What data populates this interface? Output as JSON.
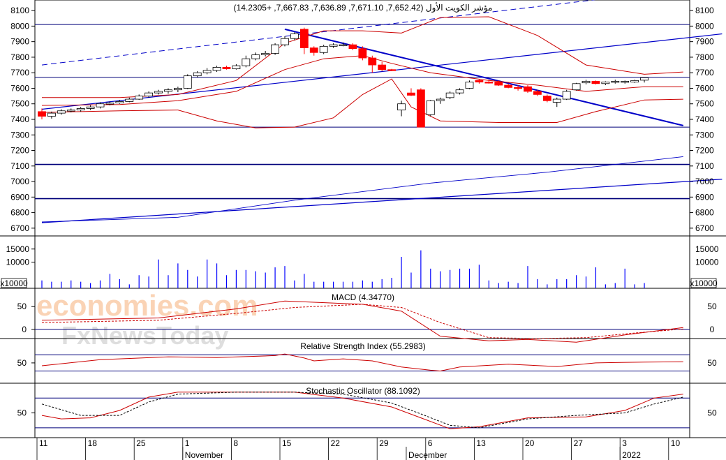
{
  "chart_data": {
    "type": "candlestick",
    "title": "مؤشر الكويت الأول (7,652.42, 7,671.10, 7,636.89, 7,667.83, +14.2305)",
    "colors": {
      "up": "#0000ff",
      "down": "#ff0000",
      "band": "#cc0000",
      "trend": "#0000c8",
      "grid": "#00007a"
    },
    "price_axis": {
      "min": 6650,
      "max": 8150,
      "ticks": [
        6700,
        6800,
        6900,
        7000,
        7100,
        7200,
        7300,
        7400,
        7500,
        7600,
        7700,
        7800,
        7900,
        8000,
        8100
      ]
    },
    "horizontal_levels": [
      8010,
      7670,
      7350,
      7110,
      6890
    ],
    "candles": [
      {
        "o": 7450,
        "h": 7470,
        "l": 7400,
        "c": 7420
      },
      {
        "o": 7420,
        "h": 7450,
        "l": 7405,
        "c": 7440
      },
      {
        "o": 7440,
        "h": 7465,
        "l": 7430,
        "c": 7455
      },
      {
        "o": 7455,
        "h": 7470,
        "l": 7445,
        "c": 7460
      },
      {
        "o": 7460,
        "h": 7480,
        "l": 7450,
        "c": 7470
      },
      {
        "o": 7470,
        "h": 7490,
        "l": 7460,
        "c": 7480
      },
      {
        "o": 7480,
        "h": 7510,
        "l": 7470,
        "c": 7500
      },
      {
        "o": 7500,
        "h": 7515,
        "l": 7490,
        "c": 7505
      },
      {
        "o": 7505,
        "h": 7525,
        "l": 7500,
        "c": 7515
      },
      {
        "o": 7515,
        "h": 7540,
        "l": 7510,
        "c": 7530
      },
      {
        "o": 7530,
        "h": 7560,
        "l": 7525,
        "c": 7550
      },
      {
        "o": 7550,
        "h": 7580,
        "l": 7540,
        "c": 7570
      },
      {
        "o": 7570,
        "h": 7590,
        "l": 7560,
        "c": 7580
      },
      {
        "o": 7580,
        "h": 7600,
        "l": 7565,
        "c": 7590
      },
      {
        "o": 7590,
        "h": 7610,
        "l": 7575,
        "c": 7600
      },
      {
        "o": 7600,
        "h": 7690,
        "l": 7595,
        "c": 7680
      },
      {
        "o": 7680,
        "h": 7710,
        "l": 7670,
        "c": 7700
      },
      {
        "o": 7700,
        "h": 7730,
        "l": 7690,
        "c": 7715
      },
      {
        "o": 7715,
        "h": 7745,
        "l": 7705,
        "c": 7735
      },
      {
        "o": 7735,
        "h": 7745,
        "l": 7720,
        "c": 7725
      },
      {
        "o": 7725,
        "h": 7755,
        "l": 7720,
        "c": 7745
      },
      {
        "o": 7745,
        "h": 7810,
        "l": 7735,
        "c": 7790
      },
      {
        "o": 7790,
        "h": 7830,
        "l": 7780,
        "c": 7815
      },
      {
        "o": 7815,
        "h": 7840,
        "l": 7805,
        "c": 7825
      },
      {
        "o": 7825,
        "h": 7890,
        "l": 7815,
        "c": 7880
      },
      {
        "o": 7880,
        "h": 7935,
        "l": 7870,
        "c": 7920
      },
      {
        "o": 7920,
        "h": 7960,
        "l": 7910,
        "c": 7950
      },
      {
        "o": 7980,
        "h": 7990,
        "l": 7820,
        "c": 7860
      },
      {
        "o": 7860,
        "h": 7870,
        "l": 7810,
        "c": 7830
      },
      {
        "o": 7830,
        "h": 7880,
        "l": 7820,
        "c": 7870
      },
      {
        "o": 7870,
        "h": 7890,
        "l": 7860,
        "c": 7880
      },
      {
        "o": 7880,
        "h": 7895,
        "l": 7870,
        "c": 7880
      },
      {
        "o": 7880,
        "h": 7890,
        "l": 7845,
        "c": 7855
      },
      {
        "o": 7855,
        "h": 7870,
        "l": 7780,
        "c": 7795
      },
      {
        "o": 7795,
        "h": 7810,
        "l": 7700,
        "c": 7750
      },
      {
        "o": 7750,
        "h": 7770,
        "l": 7710,
        "c": 7720
      },
      {
        "o": 7720,
        "h": 7725,
        "l": 7710,
        "c": 7715
      },
      {
        "o": 7460,
        "h": 7520,
        "l": 7420,
        "c": 7500
      },
      {
        "o": 7570,
        "h": 7600,
        "l": 7550,
        "c": 7555
      },
      {
        "o": 7590,
        "h": 7600,
        "l": 7350,
        "c": 7350
      },
      {
        "o": 7430,
        "h": 7525,
        "l": 7420,
        "c": 7520
      },
      {
        "o": 7520,
        "h": 7540,
        "l": 7500,
        "c": 7530
      },
      {
        "o": 7540,
        "h": 7580,
        "l": 7530,
        "c": 7570
      },
      {
        "o": 7570,
        "h": 7600,
        "l": 7560,
        "c": 7590
      },
      {
        "o": 7600,
        "h": 7650,
        "l": 7595,
        "c": 7640
      },
      {
        "o": 7650,
        "h": 7660,
        "l": 7630,
        "c": 7640
      },
      {
        "o": 7640,
        "h": 7655,
        "l": 7630,
        "c": 7635
      },
      {
        "o": 7640,
        "h": 7650,
        "l": 7615,
        "c": 7620
      },
      {
        "o": 7620,
        "h": 7630,
        "l": 7600,
        "c": 7605
      },
      {
        "o": 7605,
        "h": 7620,
        "l": 7585,
        "c": 7600
      },
      {
        "o": 7610,
        "h": 7620,
        "l": 7570,
        "c": 7580
      },
      {
        "o": 7580,
        "h": 7590,
        "l": 7550,
        "c": 7560
      },
      {
        "o": 7550,
        "h": 7560,
        "l": 7510,
        "c": 7520
      },
      {
        "o": 7510,
        "h": 7540,
        "l": 7480,
        "c": 7530
      },
      {
        "o": 7530,
        "h": 7590,
        "l": 7525,
        "c": 7580
      },
      {
        "o": 7590,
        "h": 7635,
        "l": 7585,
        "c": 7630
      },
      {
        "o": 7635,
        "h": 7655,
        "l": 7625,
        "c": 7645
      },
      {
        "o": 7645,
        "h": 7650,
        "l": 7625,
        "c": 7630
      },
      {
        "o": 7630,
        "h": 7645,
        "l": 7620,
        "c": 7640
      },
      {
        "o": 7640,
        "h": 7655,
        "l": 7630,
        "c": 7645
      },
      {
        "o": 7640,
        "h": 7650,
        "l": 7630,
        "c": 7645
      },
      {
        "o": 7640,
        "h": 7655,
        "l": 7635,
        "c": 7650
      },
      {
        "o": 7652,
        "h": 7671,
        "l": 7637,
        "c": 7668
      }
    ],
    "bollinger": {
      "upper": [
        [
          0,
          7540
        ],
        [
          8,
          7540
        ],
        [
          14,
          7560
        ],
        [
          20,
          7650
        ],
        [
          25,
          7890
        ],
        [
          29,
          7970
        ],
        [
          33,
          7970
        ],
        [
          37,
          7955
        ],
        [
          41,
          8055
        ],
        [
          46,
          8060
        ],
        [
          51,
          7940
        ],
        [
          56,
          7750
        ],
        [
          62,
          7690
        ],
        [
          66,
          7705
        ]
      ],
      "middle": [
        [
          0,
          7490
        ],
        [
          8,
          7495
        ],
        [
          14,
          7520
        ],
        [
          20,
          7580
        ],
        [
          25,
          7720
        ],
        [
          29,
          7790
        ],
        [
          33,
          7810
        ],
        [
          36,
          7760
        ],
        [
          40,
          7700
        ],
        [
          46,
          7650
        ],
        [
          51,
          7620
        ],
        [
          56,
          7580
        ],
        [
          62,
          7610
        ],
        [
          66,
          7610
        ]
      ],
      "lower": [
        [
          0,
          7445
        ],
        [
          8,
          7455
        ],
        [
          14,
          7460
        ],
        [
          18,
          7390
        ],
        [
          22,
          7345
        ],
        [
          26,
          7350
        ],
        [
          30,
          7410
        ],
        [
          33,
          7560
        ],
        [
          36,
          7660
        ],
        [
          38,
          7480
        ],
        [
          41,
          7390
        ],
        [
          47,
          7380
        ],
        [
          53,
          7380
        ],
        [
          57,
          7450
        ],
        [
          62,
          7525
        ],
        [
          66,
          7530
        ]
      ]
    },
    "moving_average": [
      [
        0,
        6740
      ],
      [
        14,
        6770
      ],
      [
        26,
        6880
      ],
      [
        40,
        6990
      ],
      [
        52,
        7060
      ],
      [
        66,
        7160
      ]
    ],
    "trend_lines": [
      {
        "style": "dashed",
        "points": [
          [
            0,
            7750
          ],
          [
            57,
            8170
          ]
        ]
      },
      {
        "style": "solid",
        "points": [
          [
            0,
            7465
          ],
          [
            70,
            7950
          ]
        ]
      },
      {
        "style": "solid",
        "points": [
          [
            0,
            6735
          ],
          [
            70,
            7015
          ]
        ]
      },
      {
        "style": "solid",
        "points": [
          [
            25,
            7980
          ],
          [
            66,
            7360
          ]
        ]
      }
    ],
    "volume": {
      "multiplier_label": "x10000",
      "ticks": [
        10000,
        15000
      ],
      "max": 20000,
      "values": [
        3000,
        2500,
        2500,
        3000,
        2500,
        2000,
        3000,
        5500,
        3500,
        1500,
        5000,
        4500,
        11000,
        5000,
        9500,
        7000,
        4500,
        11000,
        9500,
        5000,
        7000,
        7000,
        6500,
        6000,
        8000,
        8500,
        3000,
        5500,
        2500,
        2500,
        2500,
        2500,
        2500,
        3000,
        2500,
        3500,
        4000,
        12000,
        6000,
        14500,
        7500,
        6500,
        7000,
        7500,
        7500,
        9000,
        3000,
        2000,
        2500,
        2000,
        8500,
        3500,
        1500,
        3500,
        3500,
        5000,
        4500,
        8000,
        1500,
        2000,
        7500,
        1500,
        2000
      ]
    },
    "panels": [
      {
        "name": "MACD",
        "title": "MACD (4.34770)",
        "ticks": [
          0,
          50
        ],
        "range": [
          -20,
          90
        ],
        "levels": [
          0
        ],
        "series": [
          {
            "style": "solid",
            "points": [
              [
                0,
                20
              ],
              [
                12,
                25
              ],
              [
                20,
                45
              ],
              [
                25,
                62
              ],
              [
                33,
                55
              ],
              [
                37,
                40
              ],
              [
                41,
                -15
              ],
              [
                46,
                -25
              ],
              [
                50,
                -22
              ],
              [
                55,
                -28
              ],
              [
                60,
                -12
              ],
              [
                66,
                4
              ]
            ]
          },
          {
            "style": "dashed",
            "points": [
              [
                0,
                15
              ],
              [
                12,
                20
              ],
              [
                20,
                35
              ],
              [
                26,
                48
              ],
              [
                33,
                55
              ],
              [
                37,
                48
              ],
              [
                41,
                15
              ],
              [
                46,
                -18
              ],
              [
                51,
                -20
              ],
              [
                56,
                -18
              ],
              [
                61,
                -8
              ],
              [
                66,
                1
              ]
            ]
          }
        ]
      },
      {
        "name": "Relative Strength Index",
        "title": "Relative Strength Index (55.2983)",
        "ticks": [
          50
        ],
        "range": [
          0,
          110
        ],
        "levels": [
          70,
          30
        ],
        "series": [
          {
            "style": "solid",
            "points": [
              [
                0,
                43
              ],
              [
                6,
                58
              ],
              [
                13,
                65
              ],
              [
                18,
                63
              ],
              [
                24,
                68
              ],
              [
                25,
                72
              ],
              [
                27,
                62
              ],
              [
                28,
                55
              ],
              [
                31,
                60
              ],
              [
                34,
                55
              ],
              [
                37,
                40
              ],
              [
                40,
                32
              ],
              [
                41,
                30
              ],
              [
                43,
                40
              ],
              [
                48,
                47
              ],
              [
                53,
                41
              ],
              [
                57,
                50
              ],
              [
                62,
                52
              ],
              [
                66,
                53
              ]
            ]
          }
        ]
      },
      {
        "name": "Stochastic Oscillator",
        "title": "Stochastic Oscillator (88.1092)",
        "ticks": [
          50
        ],
        "range": [
          0,
          110
        ],
        "levels": [
          80,
          20
        ],
        "series": [
          {
            "style": "solid",
            "points": [
              [
                0,
                45
              ],
              [
                2,
                38
              ],
              [
                5,
                40
              ],
              [
                8,
                55
              ],
              [
                11,
                82
              ],
              [
                14,
                92
              ],
              [
                20,
                92
              ],
              [
                26,
                92
              ],
              [
                31,
                80
              ],
              [
                36,
                62
              ],
              [
                39,
                40
              ],
              [
                42,
                18
              ],
              [
                45,
                22
              ],
              [
                50,
                40
              ],
              [
                56,
                42
              ],
              [
                60,
                55
              ],
              [
                63,
                80
              ],
              [
                66,
                88
              ]
            ]
          },
          {
            "style": "dashed",
            "points": [
              [
                0,
                68
              ],
              [
                4,
                45
              ],
              [
                8,
                45
              ],
              [
                11,
                72
              ],
              [
                14,
                88
              ],
              [
                20,
                92
              ],
              [
                26,
                92
              ],
              [
                31,
                88
              ],
              [
                36,
                70
              ],
              [
                39,
                48
              ],
              [
                42,
                25
              ],
              [
                45,
                20
              ],
              [
                50,
                38
              ],
              [
                55,
                45
              ],
              [
                60,
                50
              ],
              [
                63,
                68
              ],
              [
                66,
                82
              ]
            ]
          }
        ]
      }
    ],
    "x_axis": {
      "day_labels": [
        {
          "label": "11",
          "index": 0
        },
        {
          "label": "18",
          "index": 5
        },
        {
          "label": "25",
          "index": 10
        },
        {
          "label": "1",
          "index": 15
        },
        {
          "label": "8",
          "index": 20
        },
        {
          "label": "15",
          "index": 25
        },
        {
          "label": "22",
          "index": 30
        },
        {
          "label": "29",
          "index": 35
        },
        {
          "label": "6",
          "index": 40
        },
        {
          "label": "13",
          "index": 45
        },
        {
          "label": "20",
          "index": 50
        },
        {
          "label": "27",
          "index": 55
        },
        {
          "label": "3",
          "index": 60
        },
        {
          "label": "10",
          "index": 65
        }
      ],
      "month_labels": [
        {
          "label": "November",
          "index": 15
        },
        {
          "label": "December",
          "index": 38
        },
        {
          "label": "2022",
          "index": 60
        }
      ]
    },
    "watermark": {
      "line1": "economies.com",
      "line2": "FxNewsToday"
    }
  }
}
